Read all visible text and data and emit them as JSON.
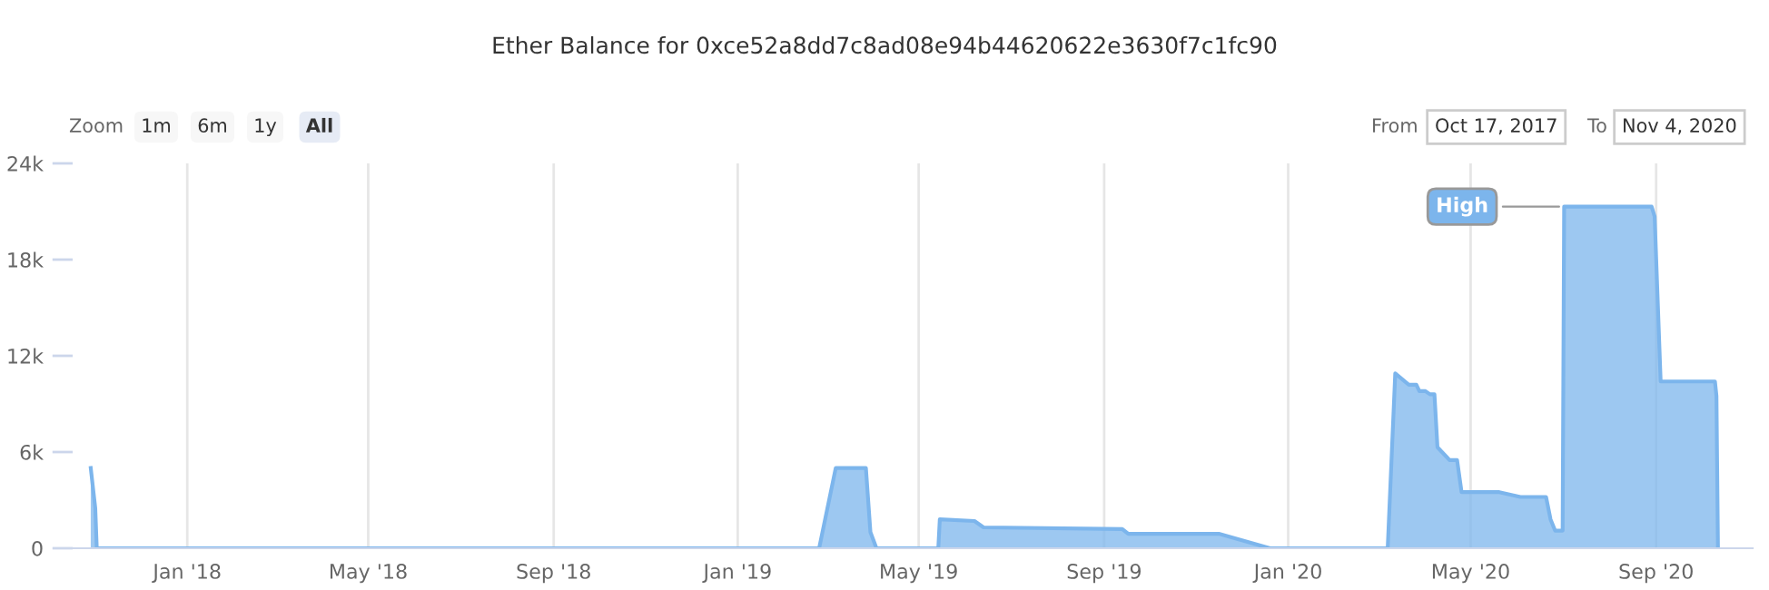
{
  "chart_data": {
    "type": "area",
    "title": "Ether Balance for 0xce52a8dd7c8ad08e94b44620622e3630f7c1fc90",
    "annotations": [
      "Zoom",
      "1m",
      "6m",
      "1y",
      "All",
      "From",
      "Oct 17, 2017",
      "To",
      "Nov 4, 2020",
      {
        "text": "High",
        "x": "2020-07-02",
        "y": 21300
      }
    ],
    "series": [
      {
        "color": "#7cb5ec",
        "x": [
          "2017-10-29",
          "2017-11-01",
          "2017-11-02",
          "2019-02-24",
          "2019-03-07",
          "2019-03-27",
          "2019-03-30",
          "2019-04-03",
          "2019-05-14",
          "2019-05-15",
          "2019-06-07",
          "2019-06-13",
          "2019-09-13",
          "2019-09-17",
          "2019-11-16",
          "2019-12-20",
          "2020-03-07",
          "2020-03-12",
          "2020-03-21",
          "2020-03-26",
          "2020-03-28",
          "2020-04-01",
          "2020-04-04",
          "2020-04-07",
          "2020-04-09",
          "2020-04-15",
          "2020-04-17",
          "2020-04-22",
          "2020-04-25",
          "2020-05-20",
          "2020-06-03",
          "2020-06-20",
          "2020-06-23",
          "2020-06-26",
          "2020-07-01",
          "2020-07-02",
          "2020-08-29",
          "2020-08-31",
          "2020-09-04",
          "2020-10-10",
          "2020-10-11",
          "2020-10-12"
        ],
        "values": [
          5000,
          2500,
          0,
          0,
          5000,
          5000,
          1000,
          0,
          0,
          1800,
          1700,
          1300,
          1200,
          900,
          900,
          0,
          0,
          10900,
          10200,
          10200,
          9800,
          9800,
          9600,
          9600,
          6300,
          5700,
          5500,
          5500,
          3500,
          3500,
          3200,
          3200,
          1800,
          1100,
          1100,
          21300,
          21300,
          20700,
          10400,
          10400,
          9500,
          0
        ]
      }
    ],
    "xlim": [
      "2017-10-17",
      "2020-11-04"
    ],
    "xticks": [
      {
        "value": "2018-01-01",
        "label": "Jan '18"
      },
      {
        "value": "2018-05-01",
        "label": "May '18"
      },
      {
        "value": "2018-09-01",
        "label": "Sep '18"
      },
      {
        "value": "2019-01-01",
        "label": "Jan '19"
      },
      {
        "value": "2019-05-01",
        "label": "May '19"
      },
      {
        "value": "2019-09-01",
        "label": "Sep '19"
      },
      {
        "value": "2020-01-01",
        "label": "Jan '20"
      },
      {
        "value": "2020-05-01",
        "label": "May '20"
      },
      {
        "value": "2020-09-01",
        "label": "Sep '20"
      }
    ],
    "ylim": [
      0,
      24000
    ],
    "yticks": [
      0,
      {
        "value": 6000,
        "label": "6k"
      },
      {
        "value": 12000,
        "label": "12k"
      },
      {
        "value": 18000,
        "label": "18k"
      },
      {
        "value": 24000,
        "label": "24k"
      }
    ],
    "grid": "x",
    "legend": false
  }
}
